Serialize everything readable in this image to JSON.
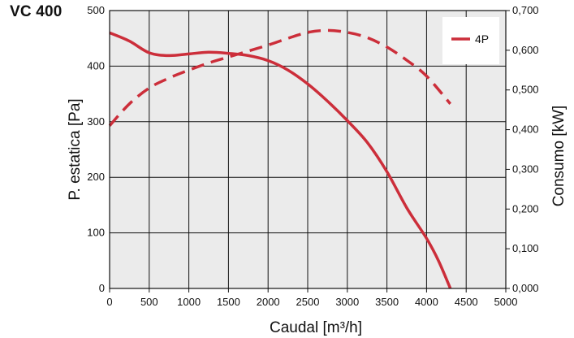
{
  "model": "VC 400",
  "chart_data": {
    "type": "line",
    "title": "VC 400",
    "xlabel": "Caudal",
    "xlabel_unit": "[m³/h]",
    "ylabel_left": "P. estatica [Pa]",
    "ylabel_right": "Consumo [kW]",
    "xlim": [
      0,
      5000
    ],
    "ylim_left": [
      0,
      500
    ],
    "ylim_right": [
      0,
      0.7
    ],
    "x_ticks": [
      "0",
      "500",
      "1000",
      "1500",
      "2000",
      "2500",
      "3000",
      "3500",
      "4000",
      "4500",
      "5000"
    ],
    "y_ticks_left": [
      "0",
      "100",
      "200",
      "300",
      "400",
      "500"
    ],
    "y_ticks_right": [
      "0,000",
      "0,100",
      "0,200",
      "0,300",
      "0,400",
      "0,500",
      "0,600",
      "0,700"
    ],
    "grid": true,
    "legend_position": "top-right",
    "series": [
      {
        "name": "",
        "axis": "left",
        "style": "solid",
        "color": "#cc2e3a",
        "x": [
          0,
          250,
          500,
          750,
          1000,
          1250,
          1500,
          1750,
          2000,
          2250,
          2500,
          2750,
          3000,
          3250,
          3500,
          3750,
          4000,
          4150,
          4300
        ],
        "y": [
          460,
          445,
          424,
          419,
          422,
          425,
          423,
          419,
          410,
          393,
          368,
          337,
          302,
          263,
          210,
          145,
          90,
          50,
          0
        ]
      },
      {
        "name": "4P",
        "axis": "right",
        "style": "dashed",
        "color": "#cc2e3a",
        "x": [
          0,
          250,
          500,
          750,
          1000,
          1250,
          1500,
          1750,
          2000,
          2250,
          2500,
          2750,
          3000,
          3250,
          3500,
          3750,
          4000,
          4300
        ],
        "y": [
          0.41,
          0.465,
          0.505,
          0.53,
          0.55,
          0.568,
          0.583,
          0.598,
          0.613,
          0.63,
          0.645,
          0.65,
          0.645,
          0.632,
          0.608,
          0.575,
          0.535,
          0.465
        ]
      }
    ]
  }
}
